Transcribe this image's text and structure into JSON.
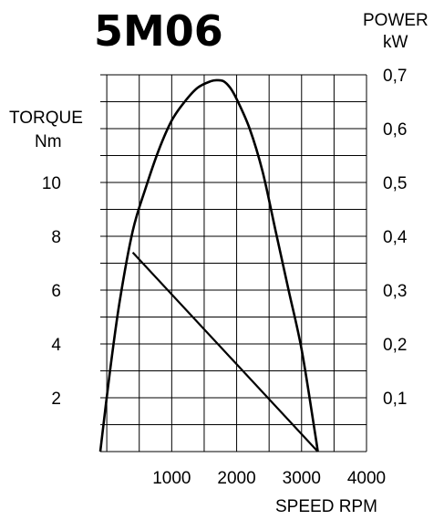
{
  "chart_data": {
    "type": "line",
    "title": "5M06",
    "xlabel": "SPEED RPM",
    "ylabel_left": [
      "TORQUE",
      "Nm"
    ],
    "ylabel_right": [
      "POWER",
      "kW"
    ],
    "xlim": [
      -100,
      4000
    ],
    "x_ticks": [
      "1000",
      "2000",
      "3000",
      "4000"
    ],
    "x_tick_values": [
      1000,
      2000,
      3000,
      4000
    ],
    "ylim_left": [
      0,
      14
    ],
    "y_ticks_left": [
      "2",
      "4",
      "6",
      "8",
      "10"
    ],
    "y_tick_values_left": [
      2,
      4,
      6,
      8,
      10
    ],
    "ylim_right": [
      0,
      0.7
    ],
    "y_ticks_right": [
      "0,1",
      "0,2",
      "0,3",
      "0,4",
      "0,5",
      "0,6",
      "0,7"
    ],
    "y_tick_values_right": [
      0.1,
      0.2,
      0.3,
      0.4,
      0.5,
      0.6,
      0.7
    ],
    "grid": true,
    "series": [
      {
        "axis": "left",
        "x": [
          400,
          3250
        ],
        "y": [
          7.4,
          0
        ]
      },
      {
        "axis": "right",
        "x": [
          -100,
          50,
          200,
          400,
          600,
          800,
          1000,
          1200,
          1400,
          1600,
          1700,
          1800,
          1900,
          2000,
          2200,
          2400,
          2600,
          2800,
          3000,
          3200,
          3250
        ],
        "y": [
          0,
          0.15,
          0.28,
          0.41,
          0.49,
          0.56,
          0.615,
          0.65,
          0.676,
          0.688,
          0.69,
          0.688,
          0.676,
          0.655,
          0.6,
          0.52,
          0.41,
          0.3,
          0.19,
          0.04,
          0
        ]
      }
    ]
  }
}
